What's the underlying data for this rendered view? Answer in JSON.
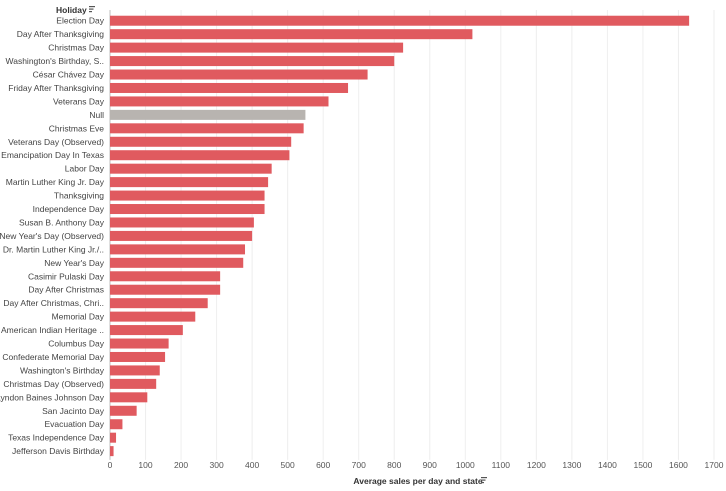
{
  "chart_data": {
    "type": "bar",
    "orientation": "horizontal",
    "row_header": "Holiday",
    "xlabel": "Average sales per day and state",
    "xlim": [
      0,
      1700
    ],
    "xticks": [
      0,
      100,
      200,
      300,
      400,
      500,
      600,
      700,
      800,
      900,
      1000,
      1100,
      1200,
      1300,
      1400,
      1500,
      1600,
      1700
    ],
    "grid": "vertical",
    "categories": [
      "Election Day",
      "Day After Thanksgiving",
      "Christmas Day",
      "Washington's Birthday, S..",
      "César Chávez Day",
      "Friday After Thanksgiving",
      "Veterans Day",
      "Null",
      "Christmas Eve",
      "Veterans Day (Observed)",
      "Emancipation Day In Texas",
      "Labor Day",
      "Martin Luther King Jr. Day",
      "Thanksgiving",
      "Independence Day",
      "Susan B. Anthony Day",
      "New Year's Day (Observed)",
      "Dr. Martin Luther King Jr./..",
      "New Year's Day",
      "Casimir Pulaski Day",
      "Day After Christmas",
      "Day After Christmas, Chri..",
      "Memorial Day",
      "American Indian Heritage ..",
      "Columbus Day",
      "Confederate Memorial Day",
      "Washington's Birthday",
      "Christmas Day (Observed)",
      "Lyndon Baines Johnson Day",
      "San Jacinto Day",
      "Evacuation Day",
      "Texas Independence Day",
      "Jefferson Davis Birthday"
    ],
    "values": [
      1630,
      1020,
      825,
      800,
      725,
      670,
      615,
      550,
      545,
      510,
      505,
      455,
      445,
      435,
      435,
      405,
      400,
      380,
      375,
      310,
      310,
      275,
      240,
      205,
      165,
      155,
      140,
      130,
      105,
      75,
      35,
      17,
      10
    ],
    "colors": {
      "default": "#e05a5f",
      "null": "#b8b4b0"
    }
  }
}
